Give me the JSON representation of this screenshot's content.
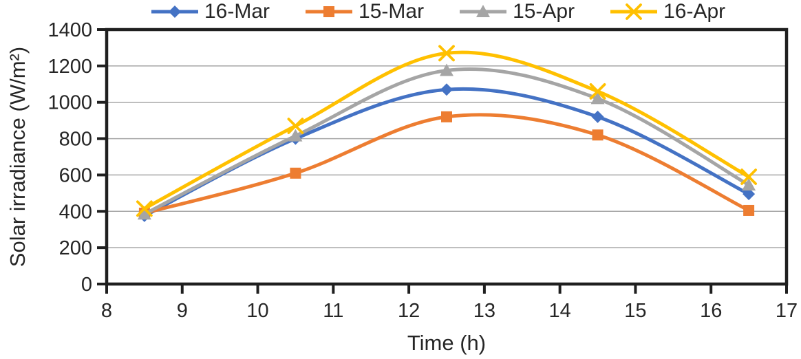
{
  "chart_data": {
    "type": "line",
    "xlabel": "Time (h)",
    "ylabel": "Solar irradiance (W/m²)",
    "x": [
      8.5,
      10.5,
      12.5,
      14.5,
      16.5
    ],
    "series": [
      {
        "name": "16-Mar",
        "color": "#4472C4",
        "marker": "diamond",
        "values": [
          375,
          800,
          1070,
          920,
          495
        ]
      },
      {
        "name": "15-Mar",
        "color": "#ED7D31",
        "marker": "square",
        "values": [
          390,
          610,
          920,
          820,
          405
        ]
      },
      {
        "name": "15-Apr",
        "color": "#A5A5A5",
        "marker": "triangle",
        "values": [
          385,
          815,
          1175,
          1020,
          545
        ]
      },
      {
        "name": "16-Apr",
        "color": "#FFC000",
        "marker": "x",
        "values": [
          415,
          870,
          1270,
          1060,
          590
        ]
      }
    ],
    "xlim": [
      8,
      17
    ],
    "ylim": [
      0,
      1400
    ],
    "xtick_step": 1,
    "ytick_step": 200,
    "xticks": [
      8,
      9,
      10,
      11,
      12,
      13,
      14,
      15,
      16,
      17
    ],
    "yticks": [
      0,
      200,
      400,
      600,
      800,
      1000,
      1200,
      1400
    ],
    "grid": "horizontal",
    "gridline_color": "#A6A6A6",
    "axis_color": "#1F1F1F",
    "legend_position": "top",
    "smooth_lines": true
  }
}
